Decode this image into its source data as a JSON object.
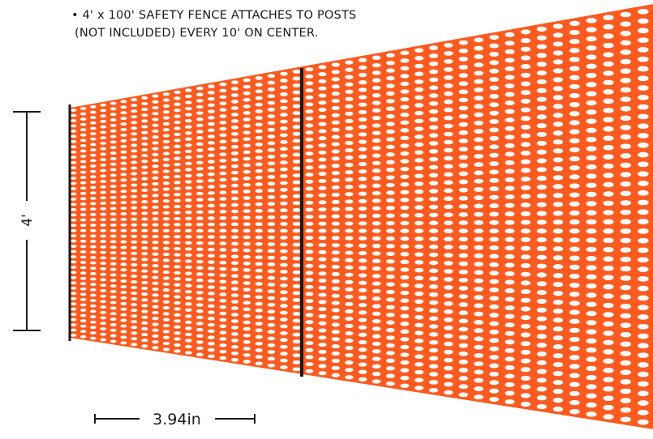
{
  "caption": {
    "line1": "• 4' x 100' SAFETY FENCE ATTACHES TO POSTS",
    "line2": "(NOT INCLUDED) EVERY 10' ON CENTER."
  },
  "height_label": "4'",
  "width_label": "3.94in",
  "colors": {
    "fence": "#ff5a1f",
    "post": "#1a1a1a",
    "dimension": "#1a1a1a"
  },
  "icons": [
    "safety-fence-mesh",
    "fence-post",
    "dimension-line"
  ]
}
